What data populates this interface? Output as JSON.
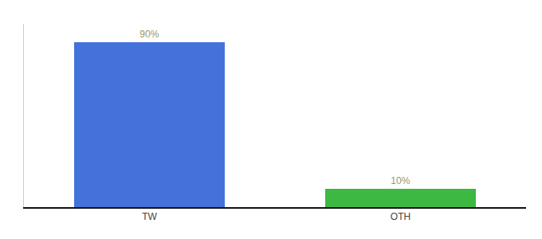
{
  "chart_data": {
    "type": "bar",
    "categories": [
      "TW",
      "OTH"
    ],
    "values": [
      90,
      10
    ],
    "value_labels": [
      "90%",
      "10%"
    ],
    "colors": [
      "#4472db",
      "#3cb843"
    ],
    "ylim": [
      0,
      100
    ],
    "grid": false,
    "data_labels": true,
    "tick_labels": "x"
  }
}
